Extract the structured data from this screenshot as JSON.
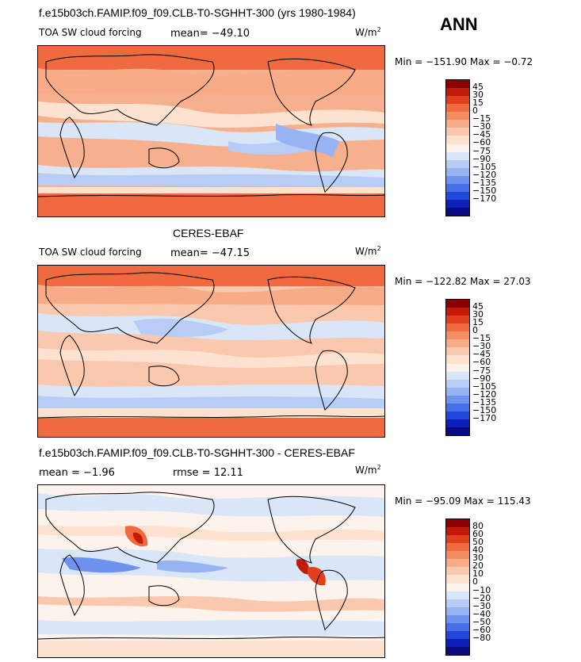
{
  "header": {
    "title": "f.e15b03ch.FAMIP.f09_f09.CLB-T0-SGHHT-300 (yrs 1980-1984)",
    "season": "ANN"
  },
  "panel1": {
    "label": "TOA SW cloud forcing",
    "mean_text": "mean= −49.10",
    "units": "W/m",
    "units_exp": "2",
    "minmax": "Min = −151.90 Max =  −0.72",
    "ticks": [
      "45",
      "30",
      "15",
      "0",
      "−15",
      "−30",
      "−45",
      "−60",
      "−75",
      "−90",
      "−105",
      "−120",
      "−135",
      "−150",
      "−170"
    ],
    "colors": [
      "#8b0000",
      "#c41a0a",
      "#e0401c",
      "#ef6a3e",
      "#f58d62",
      "#f7ac87",
      "#fac8ae",
      "#fde2d0",
      "#fcf3ec",
      "#d8e6f8",
      "#b7cdf5",
      "#97b4f2",
      "#6f92ee",
      "#4670e8",
      "#2248db",
      "#0c1fb8",
      "#0a0a80"
    ]
  },
  "panel2": {
    "heading": "CERES-EBAF",
    "label": "TOA SW cloud forcing",
    "mean_text": "mean= −47.15",
    "units": "W/m",
    "units_exp": "2",
    "minmax": "Min = −122.82 Max =  27.03",
    "ticks": [
      "45",
      "30",
      "15",
      "0",
      "−15",
      "−30",
      "−45",
      "−60",
      "−75",
      "−90",
      "−105",
      "−120",
      "−135",
      "−150",
      "−170"
    ]
  },
  "panel3": {
    "heading": "f.e15b03ch.FAMIP.f09_f09.CLB-T0-SGHHT-300 - CERES-EBAF",
    "mean_text": "mean =   −1.96",
    "rmse_text": "rmse =   12.11",
    "units": "W/m",
    "units_exp": "2",
    "minmax": "Min = −95.09 Max = 115.43",
    "ticks": [
      "80",
      "60",
      "50",
      "40",
      "30",
      "20",
      "10",
      "0",
      "−10",
      "−20",
      "−30",
      "−40",
      "−50",
      "−60",
      "−80"
    ],
    "colors": [
      "#8b0000",
      "#c41a0a",
      "#e0401c",
      "#ef6a3e",
      "#f58d62",
      "#f7ac87",
      "#fac8ae",
      "#fde2d0",
      "#fcf3ec",
      "#d8e6f8",
      "#b7cdf5",
      "#97b4f2",
      "#6f92ee",
      "#4670e8",
      "#2248db",
      "#0c1fb8",
      "#0a0a80"
    ]
  }
}
